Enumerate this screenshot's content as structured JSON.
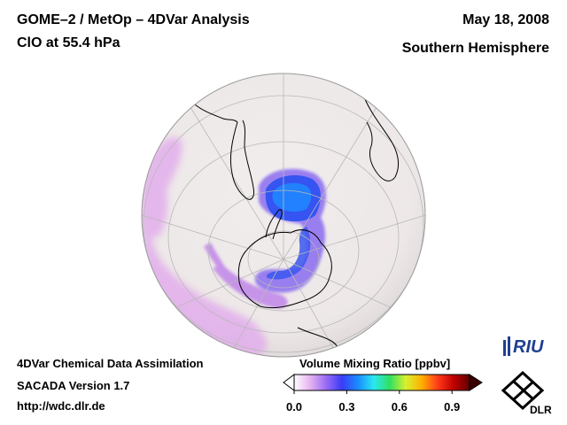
{
  "header": {
    "title_line1": "GOME–2 / MetOp – 4DVar Analysis",
    "title_line2": "ClO at 55.4 hPa",
    "date": "May 18, 2008",
    "hemisphere": "Southern Hemisphere"
  },
  "footer": {
    "line1": "4DVar Chemical Data Assimilation",
    "line2": "SACADA Version 1.7",
    "line3": "http://wdc.dlr.de"
  },
  "colorbar": {
    "title": "Volume Mixing Ratio [ppbv]",
    "ticks": [
      "0.0",
      "0.3",
      "0.6",
      "0.9"
    ],
    "tick_values": [
      0.0,
      0.3,
      0.6,
      0.9
    ],
    "range": [
      0.0,
      1.0
    ],
    "colors": [
      "#ffffff",
      "#e6b3f0",
      "#9a6cf5",
      "#3a3cf7",
      "#1a8cff",
      "#2ae8f0",
      "#30e060",
      "#d8f030",
      "#ffb000",
      "#ff3b1a",
      "#c00000",
      "#600000"
    ]
  },
  "logos": {
    "riu_text": "RIU",
    "dlr_text": "DLR"
  },
  "map": {
    "projection": "orthographic",
    "center": "south-pole",
    "ocean_color": "#efeaea",
    "coastline_color": "#000000",
    "graticule_color": "#b8b8b8"
  }
}
